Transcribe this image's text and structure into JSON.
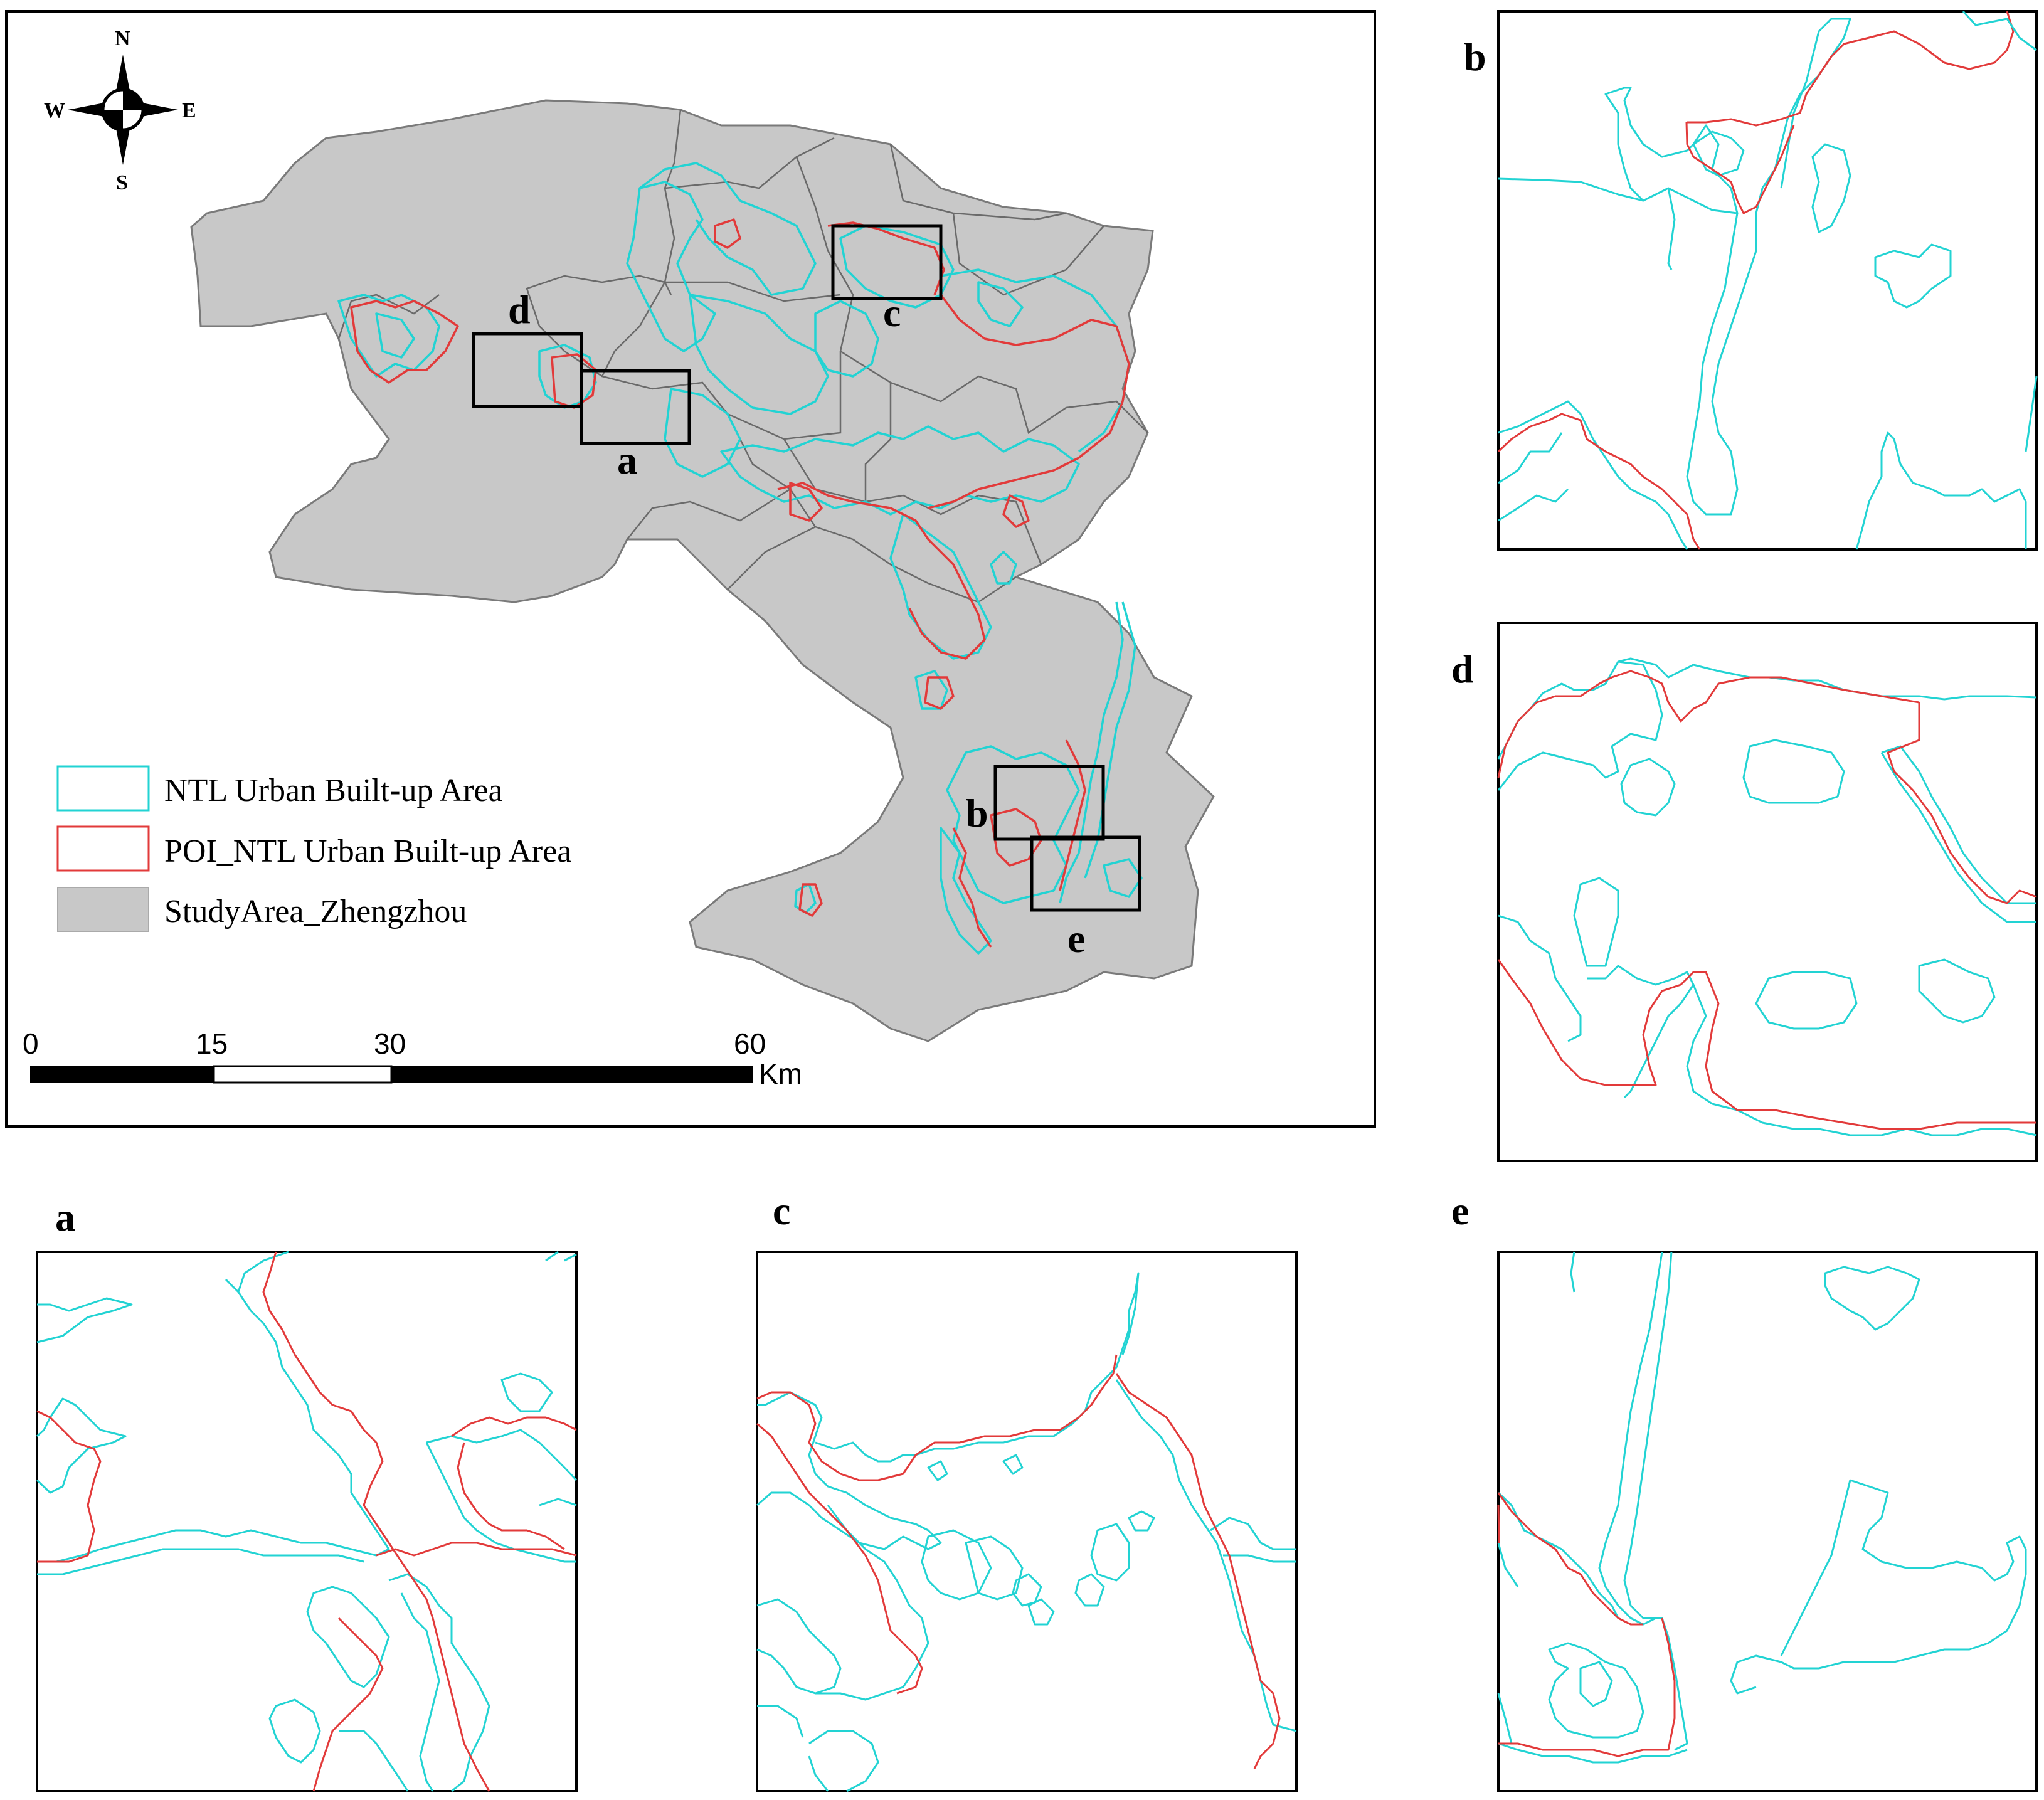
{
  "map": {
    "compass": {
      "n": "N",
      "s": "S",
      "e": "E",
      "w": "W"
    },
    "inset_labels": {
      "a": "a",
      "b": "b",
      "c": "c",
      "d": "d",
      "e": "e"
    },
    "legend": [
      {
        "label": "NTL Urban Built-up Area",
        "color": "#22d3d3",
        "kind": "outline"
      },
      {
        "label": "POI_NTL Urban Built-up Area",
        "color": "#e23a3a",
        "kind": "outline"
      },
      {
        "label": "StudyArea_Zhengzhou",
        "color": "#c8c8c8",
        "kind": "fill"
      }
    ],
    "scalebar": {
      "ticks": [
        "0",
        "15",
        "30",
        "60"
      ],
      "unit": "Km"
    }
  },
  "panels": {
    "a": "a",
    "b": "b",
    "c": "c",
    "d": "d",
    "e": "e"
  },
  "colors": {
    "ntl": "#22d3d3",
    "poi": "#e23a3a",
    "study_area": "#c8c8c8"
  }
}
